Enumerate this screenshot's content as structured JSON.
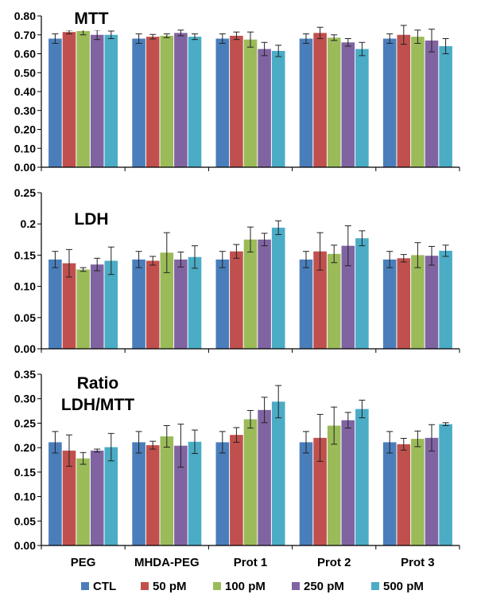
{
  "chart_data": [
    {
      "type": "bar",
      "title": "MTT",
      "categories": [
        "PEG",
        "MHDA-PEG",
        "Prot 1",
        "Prot 2",
        "Prot 3"
      ],
      "ylim": [
        0,
        0.8
      ],
      "yticks": [
        "0.00",
        "0.10",
        "0.20",
        "0.30",
        "0.40",
        "0.50",
        "0.60",
        "0.70",
        "0.80"
      ],
      "series": [
        {
          "name": "CTL",
          "color": "#4a7ebb",
          "values": [
            0.68,
            0.68,
            0.68,
            0.68,
            0.68
          ],
          "errors": [
            0.025,
            0.025,
            0.025,
            0.025,
            0.025
          ]
        },
        {
          "name": "50 pM",
          "color": "#c0504d",
          "values": [
            0.715,
            0.69,
            0.695,
            0.71,
            0.7
          ],
          "errors": [
            0.01,
            0.012,
            0.02,
            0.03,
            0.05
          ]
        },
        {
          "name": "100 pM",
          "color": "#9bbb59",
          "values": [
            0.72,
            0.695,
            0.675,
            0.685,
            0.69
          ],
          "errors": [
            0.02,
            0.01,
            0.04,
            0.015,
            0.035
          ]
        },
        {
          "name": "250 pM",
          "color": "#8064a2",
          "values": [
            0.7,
            0.71,
            0.625,
            0.66,
            0.67
          ],
          "errors": [
            0.025,
            0.015,
            0.035,
            0.02,
            0.06
          ]
        },
        {
          "name": "500 pM",
          "color": "#4bacc6",
          "values": [
            0.7,
            0.69,
            0.615,
            0.625,
            0.64
          ],
          "errors": [
            0.02,
            0.015,
            0.03,
            0.035,
            0.04
          ]
        }
      ]
    },
    {
      "type": "bar",
      "title": "LDH",
      "categories": [
        "PEG",
        "MHDA-PEG",
        "Prot 1",
        "Prot 2",
        "Prot 3"
      ],
      "ylim": [
        0,
        0.25
      ],
      "yticks": [
        "0.00",
        "0.05",
        "0.10",
        "0.15",
        "0.2",
        "0.25"
      ],
      "series": [
        {
          "name": "CTL",
          "color": "#4a7ebb",
          "values": [
            0.143,
            0.143,
            0.143,
            0.143,
            0.143
          ],
          "errors": [
            0.013,
            0.013,
            0.013,
            0.013,
            0.013
          ]
        },
        {
          "name": "50 pM",
          "color": "#c0504d",
          "values": [
            0.137,
            0.141,
            0.156,
            0.156,
            0.145
          ],
          "errors": [
            0.022,
            0.007,
            0.011,
            0.03,
            0.006
          ]
        },
        {
          "name": "100 pM",
          "color": "#9bbb59",
          "values": [
            0.127,
            0.154,
            0.175,
            0.152,
            0.15
          ],
          "errors": [
            0.003,
            0.032,
            0.02,
            0.014,
            0.02
          ]
        },
        {
          "name": "250 pM",
          "color": "#8064a2",
          "values": [
            0.135,
            0.143,
            0.175,
            0.165,
            0.149
          ],
          "errors": [
            0.01,
            0.012,
            0.01,
            0.032,
            0.015
          ]
        },
        {
          "name": "500 pM",
          "color": "#4bacc6",
          "values": [
            0.141,
            0.147,
            0.194,
            0.177,
            0.157
          ],
          "errors": [
            0.022,
            0.018,
            0.011,
            0.012,
            0.009
          ]
        }
      ]
    },
    {
      "type": "bar",
      "title": "Ratio\nLDH/MTT",
      "categories": [
        "PEG",
        "MHDA-PEG",
        "Prot 1",
        "Prot 2",
        "Prot 3"
      ],
      "ylim": [
        0,
        0.35
      ],
      "yticks": [
        "0.00",
        "0.05",
        "0.10",
        "0.15",
        "0.20",
        "0.25",
        "0.30",
        "0.35"
      ],
      "series": [
        {
          "name": "CTL",
          "color": "#4a7ebb",
          "values": [
            0.211,
            0.211,
            0.211,
            0.211,
            0.211
          ],
          "errors": [
            0.022,
            0.022,
            0.022,
            0.022,
            0.022
          ]
        },
        {
          "name": "50 pM",
          "color": "#c0504d",
          "values": [
            0.194,
            0.205,
            0.226,
            0.22,
            0.207
          ],
          "errors": [
            0.032,
            0.008,
            0.015,
            0.048,
            0.012
          ]
        },
        {
          "name": "100 pM",
          "color": "#9bbb59",
          "values": [
            0.178,
            0.223,
            0.258,
            0.245,
            0.218
          ],
          "errors": [
            0.012,
            0.022,
            0.018,
            0.038,
            0.016
          ]
        },
        {
          "name": "250 pM",
          "color": "#8064a2",
          "values": [
            0.194,
            0.204,
            0.277,
            0.256,
            0.22
          ],
          "errors": [
            0.003,
            0.044,
            0.026,
            0.016,
            0.027
          ]
        },
        {
          "name": "500 pM",
          "color": "#4bacc6",
          "values": [
            0.201,
            0.212,
            0.294,
            0.279,
            0.248
          ],
          "errors": [
            0.028,
            0.024,
            0.033,
            0.018,
            0.003
          ]
        }
      ]
    }
  ],
  "legend": {
    "position": "bottom",
    "items": [
      {
        "label": "CTL",
        "color": "#4a7ebb"
      },
      {
        "label": "50 pM",
        "color": "#c0504d"
      },
      {
        "label": "100 pM",
        "color": "#9bbb59"
      },
      {
        "label": "250 pM",
        "color": "#8064a2"
      },
      {
        "label": "500 pM",
        "color": "#4bacc6"
      }
    ]
  }
}
